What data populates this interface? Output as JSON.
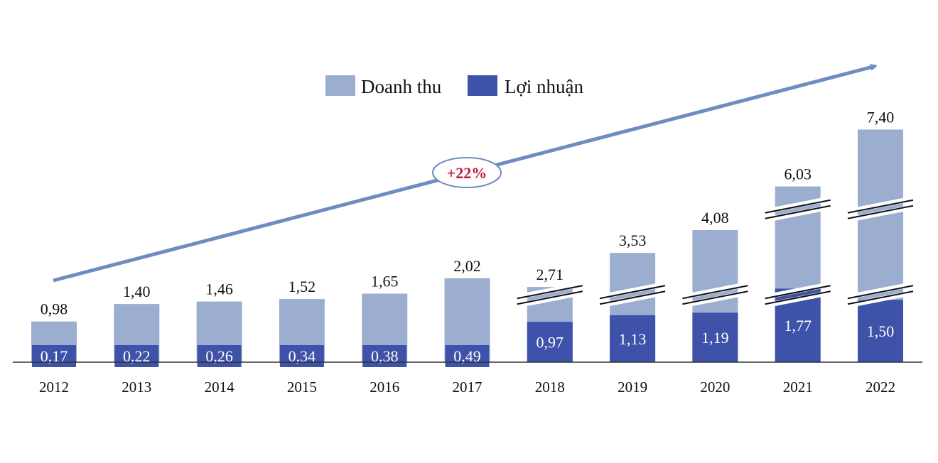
{
  "chart_data": {
    "type": "bar",
    "categories": [
      "2012",
      "2013",
      "2014",
      "2015",
      "2016",
      "2017",
      "2018",
      "2019",
      "2020",
      "2021",
      "2022"
    ],
    "series": [
      {
        "name": "Doanh thu",
        "color": "#9caed0",
        "values": [
          0.98,
          1.4,
          1.46,
          1.52,
          1.65,
          2.02,
          2.71,
          3.53,
          4.08,
          6.03,
          7.4
        ],
        "labels": [
          "0,98",
          "1,40",
          "1,46",
          "1,52",
          "1,65",
          "2,02",
          "2,71",
          "3,53",
          "4,08",
          "6,03",
          "7,40"
        ]
      },
      {
        "name": "Lợi nhuận",
        "color": "#3d52a8",
        "values": [
          0.17,
          0.22,
          0.26,
          0.34,
          0.38,
          0.49,
          0.97,
          1.13,
          1.19,
          1.77,
          1.5
        ],
        "labels": [
          "0,17",
          "0,22",
          "0,26",
          "0,34",
          "0,38",
          "0,49",
          "0,97",
          "1,13",
          "1,19",
          "1,77",
          "1,50"
        ]
      }
    ],
    "axis_breaks": {
      "2018": 1,
      "2019": 1,
      "2020": 1,
      "2021": 2,
      "2022": 2
    },
    "growth_annotation": "+22%",
    "legend_position": "top-center",
    "grid": false
  }
}
